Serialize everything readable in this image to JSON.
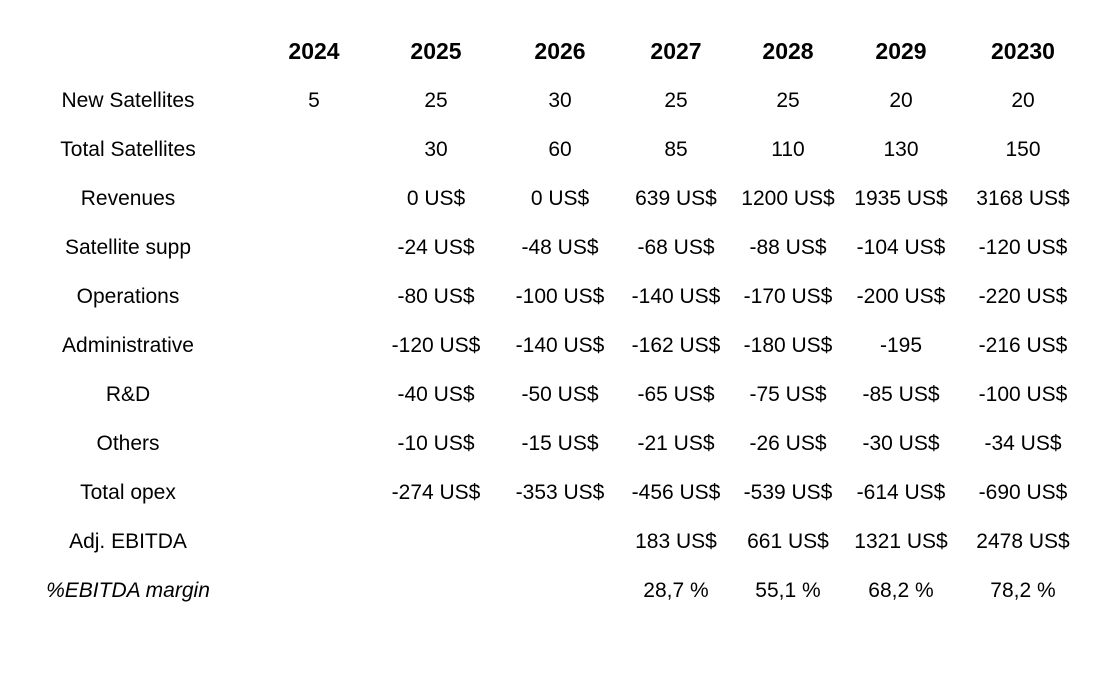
{
  "chart_data": {
    "type": "table",
    "columns": [
      "2024",
      "2025",
      "2026",
      "2027",
      "2028",
      "2029",
      "20230"
    ],
    "rows": [
      {
        "label": "New Satellites",
        "style": "regular",
        "values": [
          "5",
          "25",
          "30",
          "25",
          "25",
          "20",
          "20"
        ]
      },
      {
        "label": "Total Satellites",
        "style": "regular",
        "values": [
          "",
          "30",
          "60",
          "85",
          "110",
          "130",
          "150"
        ]
      },
      {
        "label": "Revenues",
        "style": "regular",
        "values": [
          "",
          "0 US$",
          "0 US$",
          "639 US$",
          "1200 US$",
          "1935 US$",
          "3168 US$"
        ]
      },
      {
        "label": "Satellite supp",
        "style": "regular",
        "values": [
          "",
          "-24 US$",
          "-48 US$",
          "-68 US$",
          "-88 US$",
          "-104 US$",
          "-120 US$"
        ]
      },
      {
        "label": "Operations",
        "style": "regular",
        "values": [
          "",
          "-80 US$",
          "-100 US$",
          "-140 US$",
          "-170 US$",
          "-200 US$",
          "-220 US$"
        ]
      },
      {
        "label": "Administrative",
        "style": "regular",
        "values": [
          "",
          "-120 US$",
          "-140 US$",
          "-162 US$",
          "-180 US$",
          "-195",
          "-216 US$"
        ]
      },
      {
        "label": "R&D",
        "style": "regular",
        "values": [
          "",
          "-40 US$",
          "-50 US$",
          "-65 US$",
          "-75 US$",
          "-85 US$",
          "-100 US$"
        ]
      },
      {
        "label": "Others",
        "style": "regular",
        "values": [
          "",
          "-10 US$",
          "-15 US$",
          "-21 US$",
          "-26 US$",
          "-30 US$",
          "-34 US$"
        ]
      },
      {
        "label": "Total opex",
        "style": "regular",
        "values": [
          "",
          "-274 US$",
          "-353 US$",
          "-456 US$",
          "-539 US$",
          "-614 US$",
          "-690 US$"
        ]
      },
      {
        "label": "Adj. EBITDA",
        "style": "regular",
        "values": [
          "",
          "",
          "",
          "183 US$",
          "661 US$",
          "1321 US$",
          "2478 US$"
        ]
      },
      {
        "label": "%EBITDA margin",
        "style": "italic-label",
        "values": [
          "",
          "",
          "",
          "28,7 %",
          "55,1 %",
          "68,2 %",
          "78,2 %"
        ]
      }
    ],
    "colors": {
      "text": "#000000",
      "background": "#ffffff"
    }
  }
}
